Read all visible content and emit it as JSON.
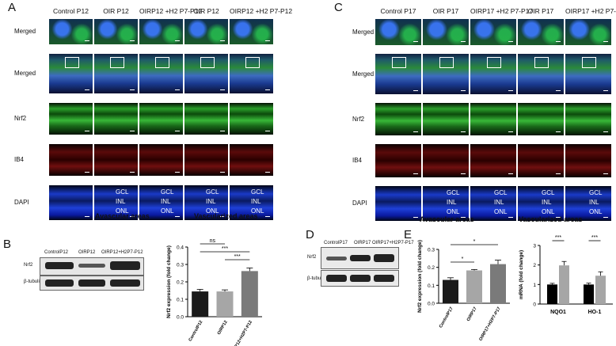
{
  "panelA": {
    "label": "A",
    "col_headers": [
      "Control P12",
      "OIR P12",
      "OIRP12 +H2 P7-P12",
      "OIR P12",
      "OIRP12 +H2 P7-P12"
    ],
    "row_labels": [
      "Merged",
      "Merged",
      "Nrf2",
      "IB4",
      "DAPI"
    ],
    "layers": [
      "GCL",
      "INL",
      "ONL"
    ],
    "areas": [
      "Avascular areas",
      "Vascularized areas"
    ]
  },
  "panelC": {
    "label": "C",
    "col_headers": [
      "Control P17",
      "OIR P17",
      "OIRP17 +H2 P7-P17",
      "OIR P17",
      "OIRP17 +H2 P7-P17"
    ],
    "row_labels": [
      "Merged",
      "Merged",
      "Nrf2",
      "IB4",
      "DAPI"
    ],
    "layers": [
      "GCL",
      "INL",
      "ONL"
    ],
    "areas": [
      "Avascular areas",
      "Vascularized areas"
    ]
  },
  "panelB": {
    "label": "B",
    "lanes": [
      "ControlP12",
      "OIRP12",
      "OIRP12+H2P7-P12"
    ],
    "blots": [
      "Nrf2",
      "β-tubulin"
    ],
    "chart_data": {
      "type": "bar",
      "categories": [
        "ControlP12",
        "OIRP12",
        "OIRP12+H2P7-P12"
      ],
      "values": [
        0.145,
        0.145,
        0.262
      ],
      "errors": [
        0.012,
        0.009,
        0.018
      ],
      "ylabel": "Nrf2 expression (fold change)",
      "ylim": [
        0,
        0.4
      ],
      "yticks": [
        "0.0",
        "0.1",
        "0.2",
        "0.3",
        "0.4"
      ],
      "colors": [
        "#1a1a1a",
        "#a6a6a6",
        "#7a7a7a"
      ],
      "significance": [
        {
          "from": 0,
          "to": 1,
          "label": "ns"
        },
        {
          "from": 0,
          "to": 2,
          "label": "***"
        },
        {
          "from": 1,
          "to": 2,
          "label": "***"
        }
      ]
    }
  },
  "panelD": {
    "label": "D",
    "lanes": [
      "ControlP17",
      "OIRP17",
      "OIRP17+H2P7-P17"
    ],
    "blots": [
      "Nrf2",
      "β-tubulin"
    ]
  },
  "panelE": {
    "label": "E",
    "chart_data": [
      {
        "type": "bar",
        "categories": [
          "ControlP17",
          "OIRP17",
          "OIRP17+H2P7-P17"
        ],
        "values": [
          0.13,
          0.183,
          0.218
        ],
        "errors": [
          0.012,
          0.005,
          0.022
        ],
        "ylabel": "Nrf2 expression (fold change)",
        "ylim": [
          0,
          0.3
        ],
        "yticks": [
          "0.0",
          "0.1",
          "0.2",
          "0.3"
        ],
        "colors": [
          "#1a1a1a",
          "#a6a6a6",
          "#7a7a7a"
        ],
        "significance": [
          {
            "from": 0,
            "to": 1,
            "label": "*"
          },
          {
            "from": 0,
            "to": 2,
            "label": "*"
          }
        ]
      },
      {
        "type": "bar",
        "categories": [
          "NQO1",
          "HO-1"
        ],
        "values_control": [
          1.0,
          1.0
        ],
        "values_oir": [
          1.98,
          1.45
        ],
        "errors_control": [
          0.06,
          0.07
        ],
        "errors_oir": [
          0.2,
          0.2
        ],
        "ylabel": "mRNA (fold change)",
        "ylim": [
          0,
          3
        ],
        "yticks": [
          "0",
          "1",
          "2",
          "3"
        ],
        "colors": [
          "#000000",
          "#a6a6a6"
        ],
        "significance": [
          "***",
          "***"
        ]
      }
    ]
  }
}
